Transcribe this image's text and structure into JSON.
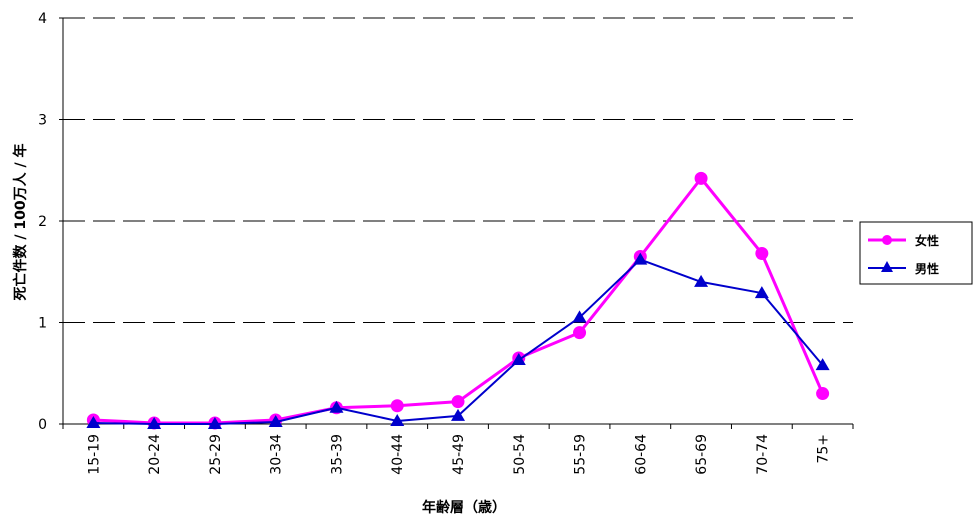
{
  "chart_data": {
    "type": "line",
    "xlabel": "年齢層（歳）",
    "ylabel": "死亡件数 / 100万人 / 年",
    "categories": [
      "15-19",
      "20-24",
      "25-29",
      "30-34",
      "35-39",
      "40-44",
      "45-49",
      "50-54",
      "55-59",
      "60-64",
      "65-69",
      "70-74",
      "75+"
    ],
    "ylim": [
      0,
      4
    ],
    "yticks": [
      0,
      1,
      2,
      3,
      4
    ],
    "grid": "horizontal dashed",
    "legend_position": "right",
    "series": [
      {
        "name": "女性",
        "color": "#ff00ff",
        "marker": "circle",
        "values": [
          0.04,
          0.01,
          0.01,
          0.04,
          0.16,
          0.18,
          0.22,
          0.65,
          0.9,
          1.65,
          2.42,
          1.68,
          0.3
        ]
      },
      {
        "name": "男性",
        "color": "#0000cc",
        "marker": "triangle",
        "values": [
          0.01,
          0.0,
          0.0,
          0.02,
          0.16,
          0.03,
          0.08,
          0.63,
          1.05,
          1.62,
          1.4,
          1.29,
          0.58
        ]
      }
    ]
  }
}
